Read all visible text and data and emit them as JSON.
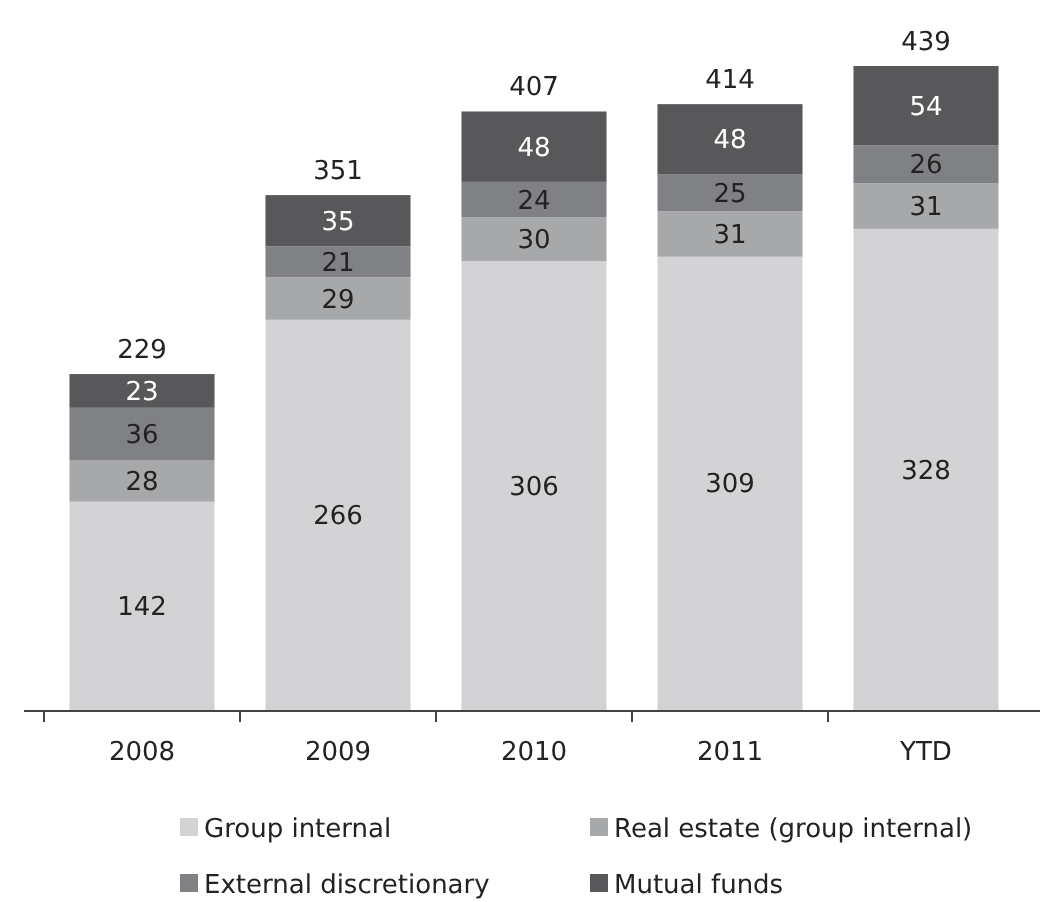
{
  "chart_data": {
    "type": "bar",
    "stacked": true,
    "data_labels": true,
    "legend": "bottom",
    "categories": [
      "2008",
      "2009",
      "2010",
      "2011",
      "YTD"
    ],
    "series": [
      {
        "name": "Group internal",
        "color": "#d3d3d5",
        "values": [
          142,
          266,
          306,
          309,
          328
        ]
      },
      {
        "name": "Real estate (group internal)",
        "color": "#a7a8aa",
        "values": [
          28,
          29,
          30,
          31,
          31
        ]
      },
      {
        "name": "External discretionary",
        "color": "#808184",
        "values": [
          36,
          21,
          24,
          25,
          26
        ]
      },
      {
        "name": "Mutual funds",
        "color": "#58585a",
        "values": [
          23,
          35,
          48,
          48,
          54
        ]
      }
    ],
    "totals": [
      "229",
      "351",
      "407",
      "414",
      "439"
    ]
  }
}
